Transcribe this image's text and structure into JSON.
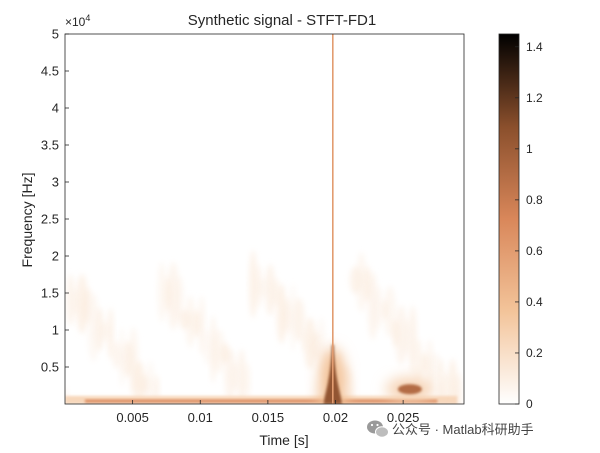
{
  "chart_data": {
    "type": "heatmap",
    "title": "Synthetic signal - STFT-FD1",
    "xlabel": "Time [s]",
    "ylabel": "Frequency [Hz]",
    "xlim": [
      0,
      0.0295
    ],
    "ylim": [
      0,
      50000
    ],
    "y_exponent_label": "×10",
    "y_exponent_power": "4",
    "x_ticks": [
      {
        "value": 0.005,
        "label": "0.005"
      },
      {
        "value": 0.01,
        "label": "0.01"
      },
      {
        "value": 0.015,
        "label": "0.015"
      },
      {
        "value": 0.02,
        "label": "0.02"
      },
      {
        "value": 0.025,
        "label": "0.025"
      }
    ],
    "y_ticks": [
      {
        "value": 5000,
        "label": "0.5"
      },
      {
        "value": 10000,
        "label": "1"
      },
      {
        "value": 15000,
        "label": "1.5"
      },
      {
        "value": 20000,
        "label": "2"
      },
      {
        "value": 25000,
        "label": "2.5"
      },
      {
        "value": 30000,
        "label": "3"
      },
      {
        "value": 35000,
        "label": "3.5"
      },
      {
        "value": 40000,
        "label": "4"
      },
      {
        "value": 45000,
        "label": "4.5"
      },
      {
        "value": 50000,
        "label": "5"
      }
    ],
    "colorbar": {
      "range": [
        0,
        1.45
      ],
      "colors": [
        "#ffffff",
        "#f3c49a",
        "#d9875a",
        "#8a4f2c",
        "#000000"
      ],
      "ticks": [
        {
          "value": 0,
          "label": "0"
        },
        {
          "value": 0.2,
          "label": "0.2"
        },
        {
          "value": 0.4,
          "label": "0.4"
        },
        {
          "value": 0.6,
          "label": "0.6"
        },
        {
          "value": 0.8,
          "label": "0.8"
        },
        {
          "value": 1,
          "label": "1"
        },
        {
          "value": 1.2,
          "label": "1.2"
        },
        {
          "value": 1.4,
          "label": "1.4"
        }
      ]
    },
    "features": [
      {
        "name": "impulse-line",
        "t": 0.0198,
        "f_min": 0,
        "f_max": 50000,
        "intensity": 0.6
      },
      {
        "name": "impulse-body",
        "t": 0.0198,
        "f_min": 0,
        "f_max": 5000,
        "intensity": 1.05
      },
      {
        "name": "burst",
        "t": 0.0255,
        "f": 2000,
        "intensity": 0.9
      },
      {
        "name": "low-frequency-band",
        "t_min": 0,
        "t_max": 0.029,
        "f": 400,
        "intensity": 0.7
      }
    ]
  },
  "watermark": {
    "text": "公众号 · Matlab科研助手",
    "icon": "wechat-icon"
  }
}
